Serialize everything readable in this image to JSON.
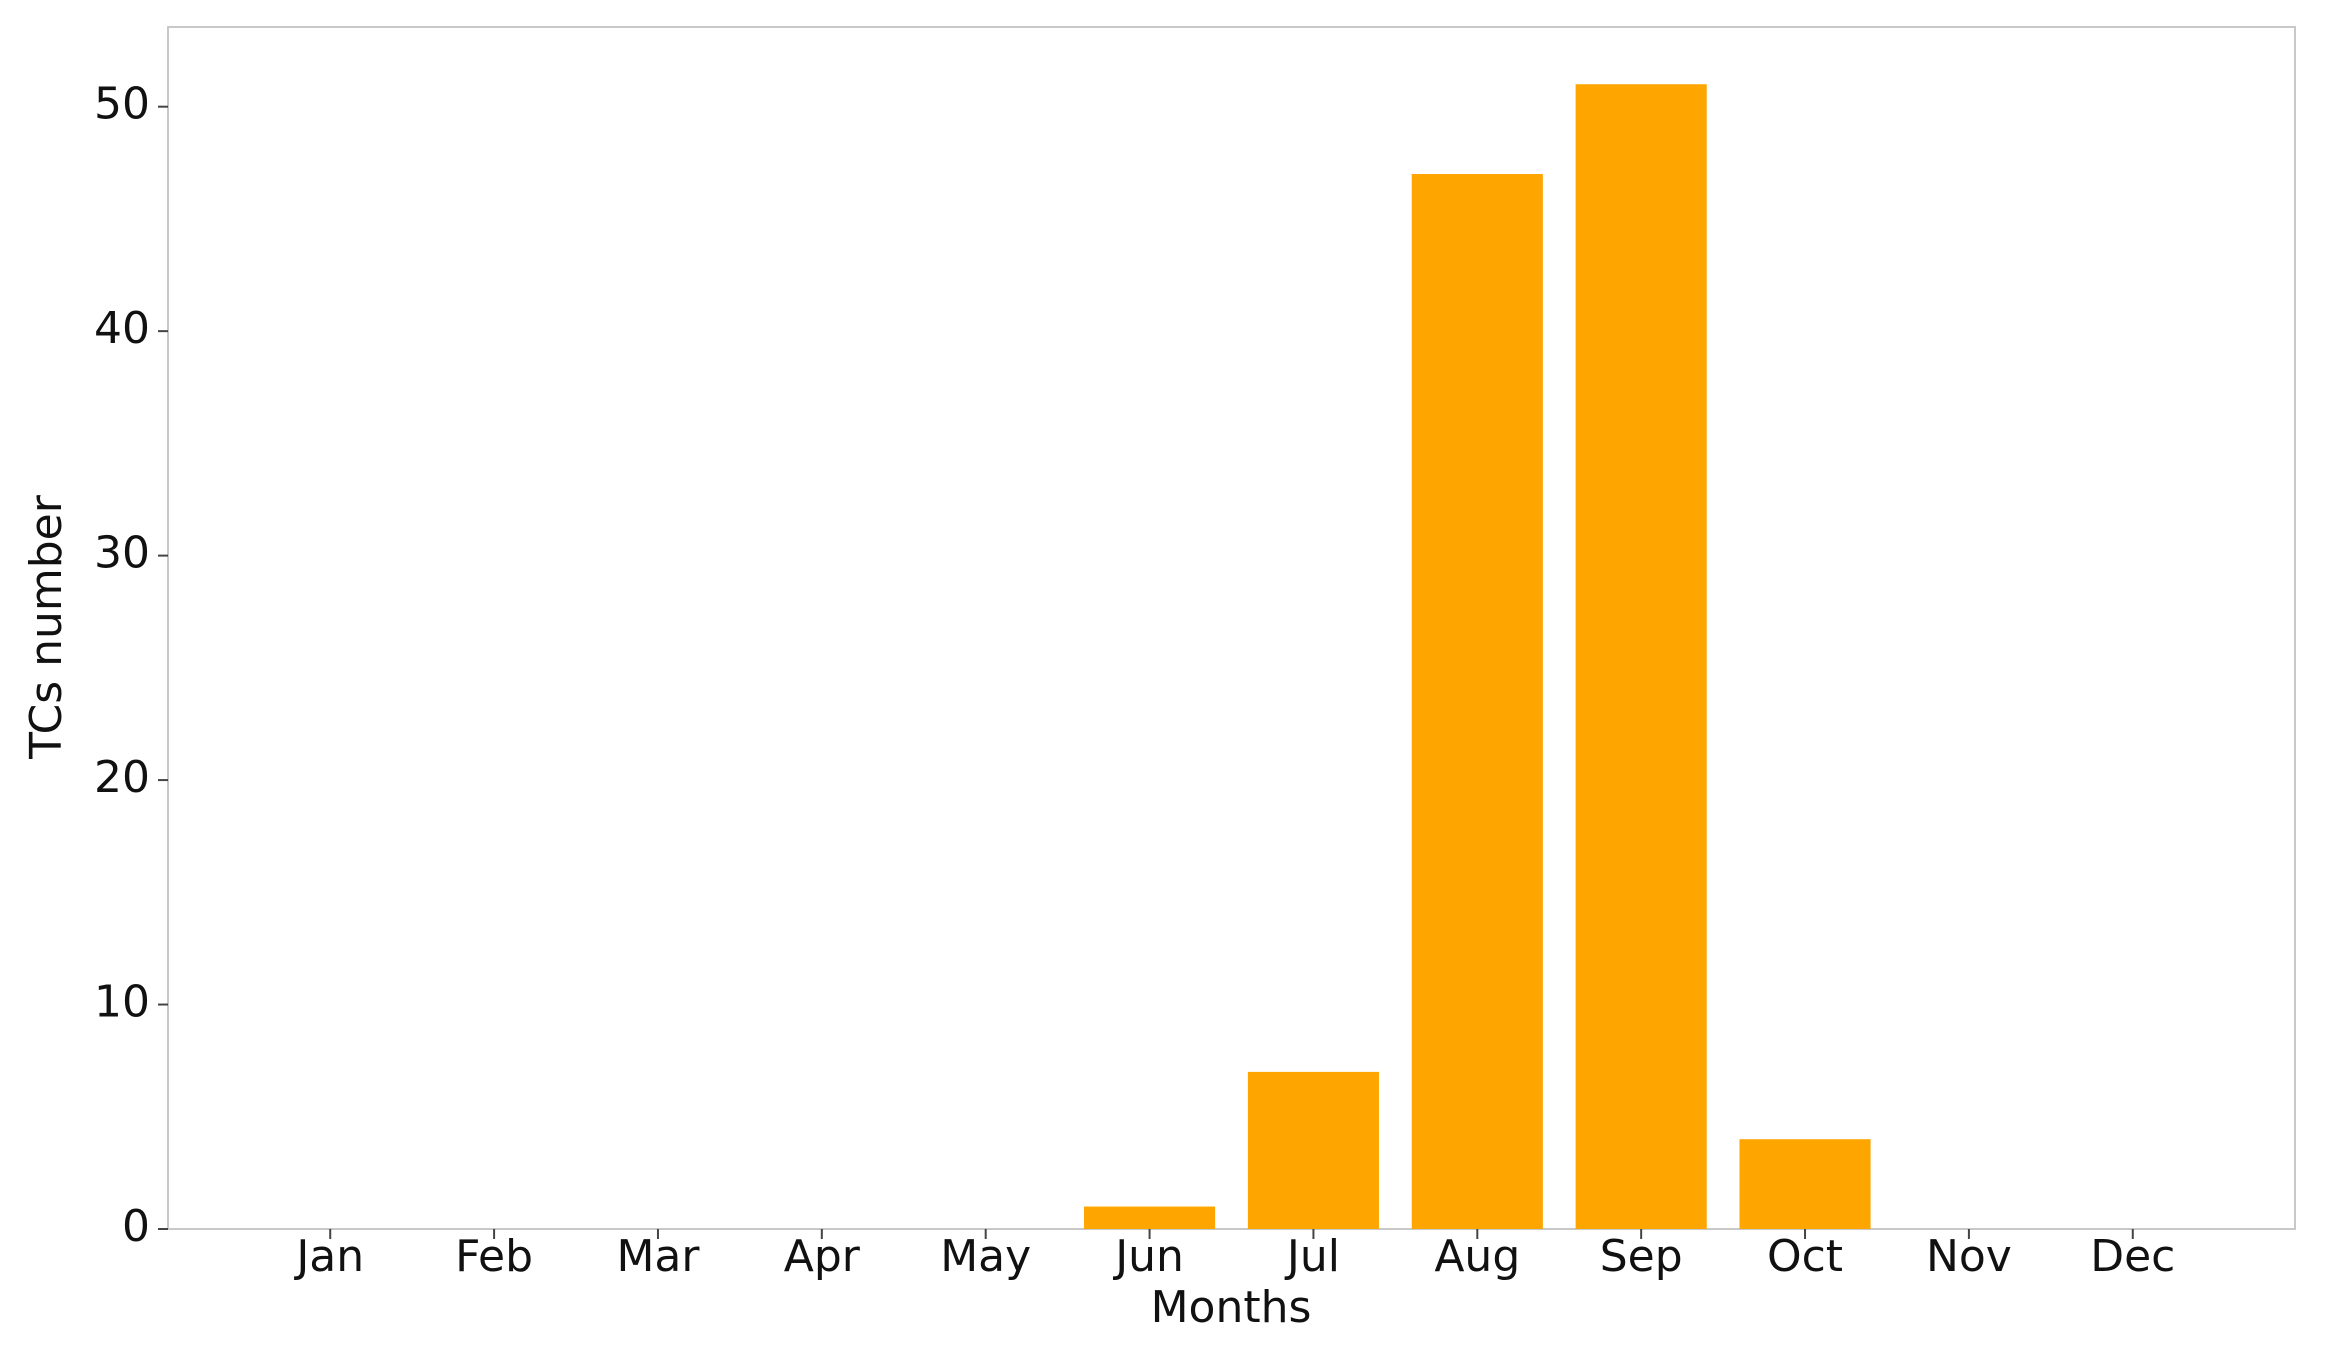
{
  "chart_data": {
    "type": "bar",
    "xlabel": "Months",
    "ylabel": "TCs number",
    "categories": [
      "Jan",
      "Feb",
      "Mar",
      "Apr",
      "May",
      "Jun",
      "Jul",
      "Aug",
      "Sep",
      "Oct",
      "Nov",
      "Dec"
    ],
    "values": [
      0,
      0,
      0,
      0,
      0,
      1,
      7,
      47,
      51,
      4,
      0,
      0
    ],
    "color": "#ffa500",
    "ylim": [
      0,
      53.55
    ],
    "yticks": [
      0,
      10,
      20,
      30,
      40,
      50
    ],
    "grid": false
  }
}
